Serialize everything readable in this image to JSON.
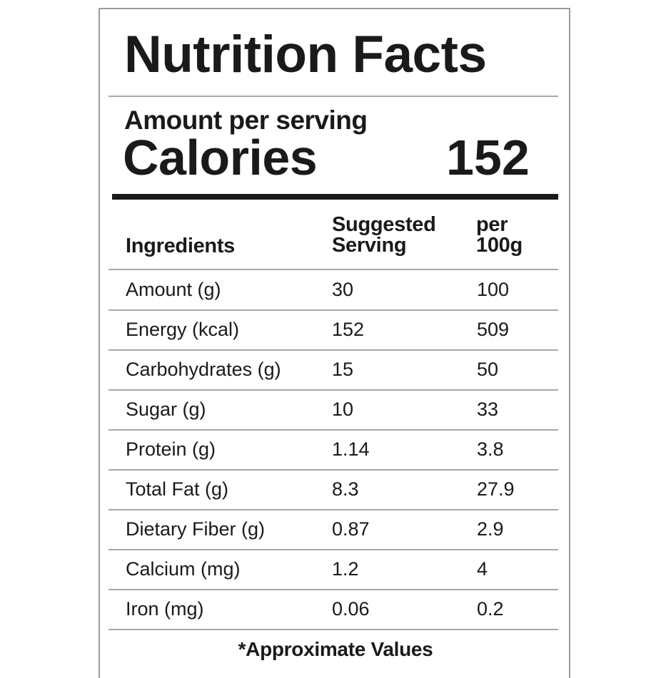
{
  "title": "Nutrition Facts",
  "amount_per_serving": "Amount per serving",
  "calories_label": "Calories",
  "calories_value": "152",
  "table": {
    "headers": [
      "Ingredients",
      "Suggested Serving",
      "per 100g"
    ],
    "header_lines": {
      "col2": [
        "Suggested",
        "Serving"
      ],
      "col3": [
        "per",
        "100g"
      ]
    },
    "rows": [
      [
        "Amount (g)",
        "30",
        "100"
      ],
      [
        "Energy (kcal)",
        "152",
        "509"
      ],
      [
        "Carbohydrates (g)",
        "15",
        "50"
      ],
      [
        "Sugar (g)",
        "10",
        "33"
      ],
      [
        "Protein (g)",
        "1.14",
        "3.8"
      ],
      [
        "Total Fat (g)",
        "8.3",
        "27.9"
      ],
      [
        "Dietary Fiber (g)",
        "0.87",
        "2.9"
      ],
      [
        "Calcium (mg)",
        "1.2",
        "4"
      ],
      [
        "Iron (mg)",
        "0.06",
        "0.2"
      ]
    ]
  },
  "footnote": "*Approximate Values"
}
